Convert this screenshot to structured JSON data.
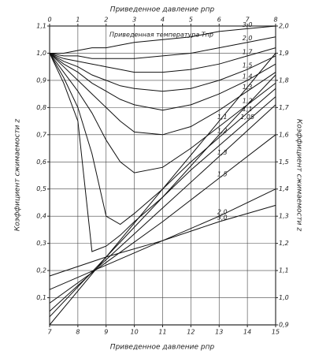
{
  "chart_data": [
    {
      "type": "line",
      "x_label": "Приведенное давление pпр",
      "y_label": "Коэффициент сжимаемости z",
      "annotation": "Приведенная температура Tпр",
      "x": [
        0,
        0.5,
        1,
        1.5,
        2,
        2.5,
        3,
        4,
        5,
        6,
        7,
        8
      ],
      "xlim": [
        0,
        8
      ],
      "xticks": [
        0,
        1,
        2,
        3,
        4,
        5,
        6,
        7,
        8
      ],
      "ylim": [
        0,
        1.1
      ],
      "yticks": [
        {
          "value": 0.1,
          "label": "0,1"
        },
        {
          "value": 0.2,
          "label": "0,2"
        },
        {
          "value": 0.3,
          "label": "0,3"
        },
        {
          "value": 0.4,
          "label": "0,4"
        },
        {
          "value": 0.5,
          "label": "0,5"
        },
        {
          "value": 0.6,
          "label": "0,6"
        },
        {
          "value": 0.7,
          "label": "0,7"
        },
        {
          "value": 0.8,
          "label": "0,8"
        },
        {
          "value": 0.9,
          "label": "0,9"
        },
        {
          "value": 1.0,
          "label": "1,0"
        },
        {
          "value": 1.1,
          "label": "1,1"
        }
      ],
      "grid": true,
      "series": [
        {
          "name": "1,05",
          "color": "#111111",
          "values": [
            1.0,
            0.89,
            0.75,
            0.27,
            0.29,
            0.33,
            0.38,
            0.47,
            0.57,
            0.66,
            0.75,
            0.84
          ]
        },
        {
          "name": "1,1",
          "color": "#111111",
          "values": [
            1.0,
            0.91,
            0.8,
            0.63,
            0.4,
            0.37,
            0.41,
            0.5,
            0.6,
            0.69,
            0.78,
            0.87
          ]
        },
        {
          "name": "1,2",
          "color": "#111111",
          "values": [
            1.0,
            0.93,
            0.86,
            0.78,
            0.68,
            0.6,
            0.56,
            0.58,
            0.65,
            0.73,
            0.81,
            0.89
          ]
        },
        {
          "name": "1,3",
          "color": "#111111",
          "values": [
            1.0,
            0.95,
            0.9,
            0.85,
            0.8,
            0.75,
            0.71,
            0.7,
            0.73,
            0.79,
            0.86,
            0.93
          ]
        },
        {
          "name": "1,4",
          "color": "#111111",
          "values": [
            1.0,
            0.96,
            0.93,
            0.89,
            0.86,
            0.83,
            0.81,
            0.79,
            0.81,
            0.85,
            0.9,
            0.96
          ]
        },
        {
          "name": "1,5",
          "color": "#111111",
          "values": [
            1.0,
            0.97,
            0.95,
            0.92,
            0.9,
            0.88,
            0.87,
            0.86,
            0.87,
            0.9,
            0.94,
            0.99
          ]
        },
        {
          "name": "1,7",
          "color": "#111111",
          "values": [
            1.0,
            0.98,
            0.97,
            0.96,
            0.95,
            0.94,
            0.93,
            0.93,
            0.94,
            0.96,
            0.99,
            1.02
          ]
        },
        {
          "name": "2,0",
          "color": "#111111",
          "values": [
            1.0,
            0.99,
            0.99,
            0.98,
            0.98,
            0.98,
            0.98,
            0.99,
            1.0,
            1.02,
            1.04,
            1.06
          ]
        },
        {
          "name": "3,0",
          "color": "#111111",
          "values": [
            1.0,
            1.0,
            1.01,
            1.02,
            1.02,
            1.03,
            1.04,
            1.05,
            1.06,
            1.08,
            1.09,
            1.1
          ]
        }
      ]
    },
    {
      "type": "line",
      "x_label": "Приведенное давление pпр",
      "y_label": "Коэффициент сжимаемости z",
      "x": [
        7,
        9,
        11,
        13,
        15
      ],
      "xlim": [
        7,
        15
      ],
      "xticks": [
        7,
        8,
        9,
        10,
        11,
        12,
        13,
        14,
        15
      ],
      "ylim": [
        0.9,
        2.0
      ],
      "yticks": [
        {
          "value": 0.9,
          "label": "0,9"
        },
        {
          "value": 1.0,
          "label": "1,0"
        },
        {
          "value": 1.1,
          "label": "1,1"
        },
        {
          "value": 1.2,
          "label": "1,2"
        },
        {
          "value": 1.3,
          "label": "1,3"
        },
        {
          "value": 1.4,
          "label": "1,4"
        },
        {
          "value": 1.5,
          "label": "1,5"
        },
        {
          "value": 1.6,
          "label": "1,6"
        },
        {
          "value": 1.7,
          "label": "1,7"
        },
        {
          "value": 1.8,
          "label": "1,8"
        },
        {
          "value": 1.9,
          "label": "1,9"
        },
        {
          "value": 2.0,
          "label": "2,0"
        }
      ],
      "series": [
        {
          "name": "1,1",
          "color": "#111111",
          "values": [
            0.9,
            1.15,
            1.4,
            1.65,
            1.9
          ]
        },
        {
          "name": "1,2",
          "color": "#111111",
          "values": [
            0.93,
            1.15,
            1.37,
            1.6,
            1.82
          ]
        },
        {
          "name": "1,3",
          "color": "#111111",
          "values": [
            0.95,
            1.14,
            1.33,
            1.52,
            1.71
          ]
        },
        {
          "name": "1,5",
          "color": "#111111",
          "values": [
            0.98,
            1.13,
            1.28,
            1.44,
            1.6
          ]
        },
        {
          "name": "2,0",
          "color": "#111111",
          "values": [
            1.03,
            1.12,
            1.21,
            1.3,
            1.4
          ]
        },
        {
          "name": "3,0",
          "color": "#111111",
          "values": [
            1.08,
            1.15,
            1.21,
            1.28,
            1.34
          ]
        }
      ]
    }
  ]
}
